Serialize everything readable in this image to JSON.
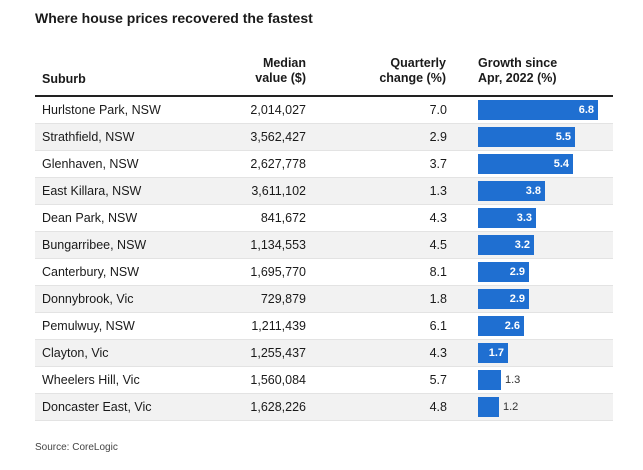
{
  "chart_data": {
    "type": "table",
    "title": "Where house prices recovered the fastest",
    "columns": {
      "suburb": "Suburb",
      "median": "Median\nvalue ($)",
      "quarterly": "Quarterly\nchange (%)",
      "growth": "Growth since\nApr, 2022 (%)"
    },
    "rows": [
      {
        "suburb": "Hurlstone Park, NSW",
        "median": "2,014,027",
        "quarterly": "7.0",
        "growth": 6.8
      },
      {
        "suburb": "Strathfield, NSW",
        "median": "3,562,427",
        "quarterly": "2.9",
        "growth": 5.5
      },
      {
        "suburb": "Glenhaven, NSW",
        "median": "2,627,778",
        "quarterly": "3.7",
        "growth": 5.4
      },
      {
        "suburb": "East Killara, NSW",
        "median": "3,611,102",
        "quarterly": "1.3",
        "growth": 3.8
      },
      {
        "suburb": "Dean Park, NSW",
        "median": "841,672",
        "quarterly": "4.3",
        "growth": 3.3
      },
      {
        "suburb": "Bungarribee, NSW",
        "median": "1,134,553",
        "quarterly": "4.5",
        "growth": 3.2
      },
      {
        "suburb": "Canterbury, NSW",
        "median": "1,695,770",
        "quarterly": "8.1",
        "growth": 2.9
      },
      {
        "suburb": "Donnybrook, Vic",
        "median": "729,879",
        "quarterly": "1.8",
        "growth": 2.9
      },
      {
        "suburb": "Pemulwuy, NSW",
        "median": "1,211,439",
        "quarterly": "6.1",
        "growth": 2.6
      },
      {
        "suburb": "Clayton, Vic",
        "median": "1,255,437",
        "quarterly": "4.3",
        "growth": 1.7
      },
      {
        "suburb": "Wheelers Hill, Vic",
        "median": "1,560,084",
        "quarterly": "5.7",
        "growth": 1.3
      },
      {
        "suburb": "Doncaster East, Vic",
        "median": "1,628,226",
        "quarterly": "4.8",
        "growth": 1.2
      }
    ],
    "growth_max": 6.8,
    "bar_color": "#1f6fd1",
    "source": "Source: CoreLogic"
  }
}
